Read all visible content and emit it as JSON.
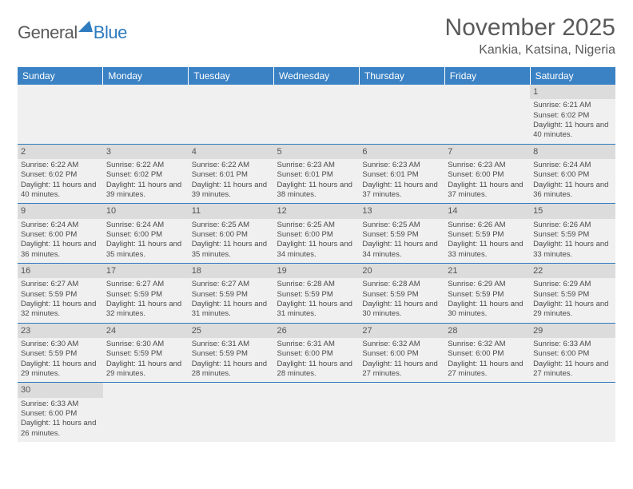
{
  "logo": {
    "general": "General",
    "blue": "Blue"
  },
  "title": "November 2025",
  "location": "Kankia, Katsina, Nigeria",
  "colors": {
    "header_bg": "#3a82c4",
    "header_text": "#ffffff",
    "daynum_bg": "#dcdcdc",
    "cell_bg": "#f0f0f0",
    "border": "#2f7bbf",
    "logo_blue": "#2f7bbf",
    "text_gray": "#5a5a5a"
  },
  "day_headers": [
    "Sunday",
    "Monday",
    "Tuesday",
    "Wednesday",
    "Thursday",
    "Friday",
    "Saturday"
  ],
  "weeks": [
    [
      {
        "n": "",
        "sr": "",
        "ss": "",
        "dl": ""
      },
      {
        "n": "",
        "sr": "",
        "ss": "",
        "dl": ""
      },
      {
        "n": "",
        "sr": "",
        "ss": "",
        "dl": ""
      },
      {
        "n": "",
        "sr": "",
        "ss": "",
        "dl": ""
      },
      {
        "n": "",
        "sr": "",
        "ss": "",
        "dl": ""
      },
      {
        "n": "",
        "sr": "",
        "ss": "",
        "dl": ""
      },
      {
        "n": "1",
        "sr": "Sunrise: 6:21 AM",
        "ss": "Sunset: 6:02 PM",
        "dl": "Daylight: 11 hours and 40 minutes."
      }
    ],
    [
      {
        "n": "2",
        "sr": "Sunrise: 6:22 AM",
        "ss": "Sunset: 6:02 PM",
        "dl": "Daylight: 11 hours and 40 minutes."
      },
      {
        "n": "3",
        "sr": "Sunrise: 6:22 AM",
        "ss": "Sunset: 6:02 PM",
        "dl": "Daylight: 11 hours and 39 minutes."
      },
      {
        "n": "4",
        "sr": "Sunrise: 6:22 AM",
        "ss": "Sunset: 6:01 PM",
        "dl": "Daylight: 11 hours and 39 minutes."
      },
      {
        "n": "5",
        "sr": "Sunrise: 6:23 AM",
        "ss": "Sunset: 6:01 PM",
        "dl": "Daylight: 11 hours and 38 minutes."
      },
      {
        "n": "6",
        "sr": "Sunrise: 6:23 AM",
        "ss": "Sunset: 6:01 PM",
        "dl": "Daylight: 11 hours and 37 minutes."
      },
      {
        "n": "7",
        "sr": "Sunrise: 6:23 AM",
        "ss": "Sunset: 6:00 PM",
        "dl": "Daylight: 11 hours and 37 minutes."
      },
      {
        "n": "8",
        "sr": "Sunrise: 6:24 AM",
        "ss": "Sunset: 6:00 PM",
        "dl": "Daylight: 11 hours and 36 minutes."
      }
    ],
    [
      {
        "n": "9",
        "sr": "Sunrise: 6:24 AM",
        "ss": "Sunset: 6:00 PM",
        "dl": "Daylight: 11 hours and 36 minutes."
      },
      {
        "n": "10",
        "sr": "Sunrise: 6:24 AM",
        "ss": "Sunset: 6:00 PM",
        "dl": "Daylight: 11 hours and 35 minutes."
      },
      {
        "n": "11",
        "sr": "Sunrise: 6:25 AM",
        "ss": "Sunset: 6:00 PM",
        "dl": "Daylight: 11 hours and 35 minutes."
      },
      {
        "n": "12",
        "sr": "Sunrise: 6:25 AM",
        "ss": "Sunset: 6:00 PM",
        "dl": "Daylight: 11 hours and 34 minutes."
      },
      {
        "n": "13",
        "sr": "Sunrise: 6:25 AM",
        "ss": "Sunset: 5:59 PM",
        "dl": "Daylight: 11 hours and 34 minutes."
      },
      {
        "n": "14",
        "sr": "Sunrise: 6:26 AM",
        "ss": "Sunset: 5:59 PM",
        "dl": "Daylight: 11 hours and 33 minutes."
      },
      {
        "n": "15",
        "sr": "Sunrise: 6:26 AM",
        "ss": "Sunset: 5:59 PM",
        "dl": "Daylight: 11 hours and 33 minutes."
      }
    ],
    [
      {
        "n": "16",
        "sr": "Sunrise: 6:27 AM",
        "ss": "Sunset: 5:59 PM",
        "dl": "Daylight: 11 hours and 32 minutes."
      },
      {
        "n": "17",
        "sr": "Sunrise: 6:27 AM",
        "ss": "Sunset: 5:59 PM",
        "dl": "Daylight: 11 hours and 32 minutes."
      },
      {
        "n": "18",
        "sr": "Sunrise: 6:27 AM",
        "ss": "Sunset: 5:59 PM",
        "dl": "Daylight: 11 hours and 31 minutes."
      },
      {
        "n": "19",
        "sr": "Sunrise: 6:28 AM",
        "ss": "Sunset: 5:59 PM",
        "dl": "Daylight: 11 hours and 31 minutes."
      },
      {
        "n": "20",
        "sr": "Sunrise: 6:28 AM",
        "ss": "Sunset: 5:59 PM",
        "dl": "Daylight: 11 hours and 30 minutes."
      },
      {
        "n": "21",
        "sr": "Sunrise: 6:29 AM",
        "ss": "Sunset: 5:59 PM",
        "dl": "Daylight: 11 hours and 30 minutes."
      },
      {
        "n": "22",
        "sr": "Sunrise: 6:29 AM",
        "ss": "Sunset: 5:59 PM",
        "dl": "Daylight: 11 hours and 29 minutes."
      }
    ],
    [
      {
        "n": "23",
        "sr": "Sunrise: 6:30 AM",
        "ss": "Sunset: 5:59 PM",
        "dl": "Daylight: 11 hours and 29 minutes."
      },
      {
        "n": "24",
        "sr": "Sunrise: 6:30 AM",
        "ss": "Sunset: 5:59 PM",
        "dl": "Daylight: 11 hours and 29 minutes."
      },
      {
        "n": "25",
        "sr": "Sunrise: 6:31 AM",
        "ss": "Sunset: 5:59 PM",
        "dl": "Daylight: 11 hours and 28 minutes."
      },
      {
        "n": "26",
        "sr": "Sunrise: 6:31 AM",
        "ss": "Sunset: 6:00 PM",
        "dl": "Daylight: 11 hours and 28 minutes."
      },
      {
        "n": "27",
        "sr": "Sunrise: 6:32 AM",
        "ss": "Sunset: 6:00 PM",
        "dl": "Daylight: 11 hours and 27 minutes."
      },
      {
        "n": "28",
        "sr": "Sunrise: 6:32 AM",
        "ss": "Sunset: 6:00 PM",
        "dl": "Daylight: 11 hours and 27 minutes."
      },
      {
        "n": "29",
        "sr": "Sunrise: 6:33 AM",
        "ss": "Sunset: 6:00 PM",
        "dl": "Daylight: 11 hours and 27 minutes."
      }
    ],
    [
      {
        "n": "30",
        "sr": "Sunrise: 6:33 AM",
        "ss": "Sunset: 6:00 PM",
        "dl": "Daylight: 11 hours and 26 minutes."
      },
      {
        "n": "",
        "sr": "",
        "ss": "",
        "dl": ""
      },
      {
        "n": "",
        "sr": "",
        "ss": "",
        "dl": ""
      },
      {
        "n": "",
        "sr": "",
        "ss": "",
        "dl": ""
      },
      {
        "n": "",
        "sr": "",
        "ss": "",
        "dl": ""
      },
      {
        "n": "",
        "sr": "",
        "ss": "",
        "dl": ""
      },
      {
        "n": "",
        "sr": "",
        "ss": "",
        "dl": ""
      }
    ]
  ]
}
